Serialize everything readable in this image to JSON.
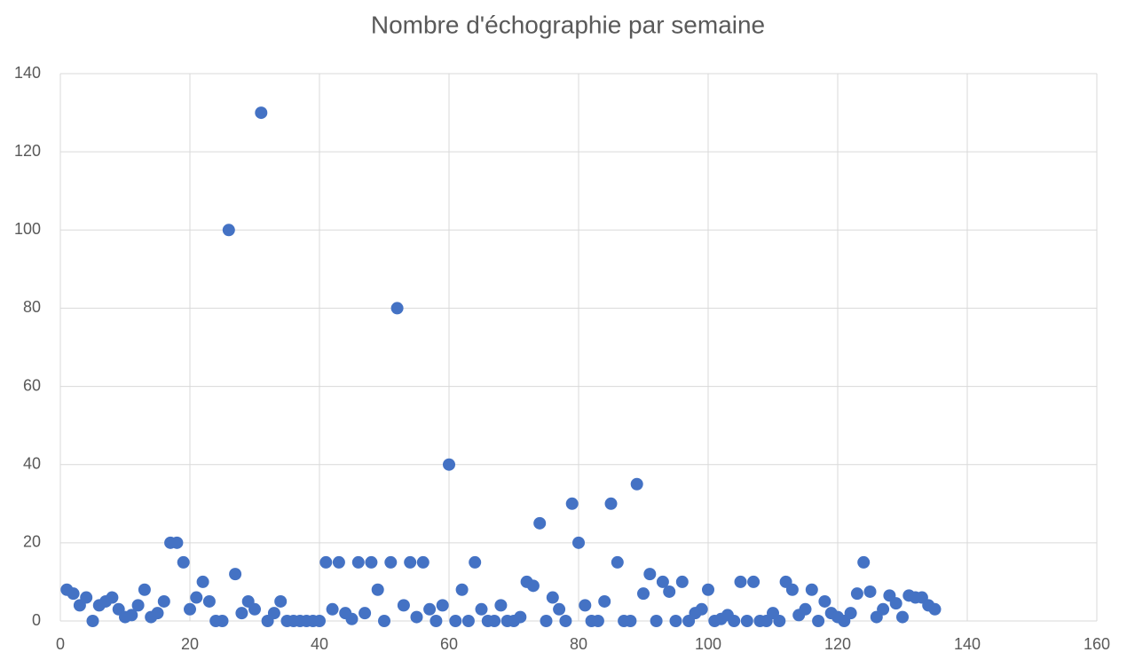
{
  "chart_data": {
    "type": "scatter",
    "title": "Nombre d'échographie par semaine",
    "x": [
      1,
      2,
      3,
      4,
      5,
      6,
      7,
      8,
      9,
      10,
      11,
      12,
      13,
      14,
      15,
      16,
      17,
      18,
      19,
      20,
      21,
      22,
      23,
      24,
      25,
      26,
      27,
      28,
      29,
      30,
      31,
      32,
      33,
      34,
      35,
      36,
      37,
      38,
      39,
      40,
      41,
      42,
      43,
      44,
      45,
      46,
      47,
      48,
      49,
      50,
      51,
      52,
      53,
      54,
      55,
      56,
      57,
      58,
      59,
      60,
      61,
      62,
      63,
      64,
      65,
      66,
      67,
      68,
      69,
      70,
      71,
      72,
      73,
      74,
      75,
      76,
      77,
      78,
      79,
      80,
      81,
      82,
      83,
      84,
      85,
      86,
      87,
      88,
      89,
      90,
      91,
      92,
      93,
      94,
      95,
      96,
      97,
      98,
      99,
      100,
      101,
      102,
      103,
      104,
      105,
      106,
      107,
      108,
      109,
      110,
      111,
      112,
      113,
      114,
      115,
      116,
      117,
      118,
      119,
      120,
      121,
      122,
      123,
      124,
      125,
      126,
      127,
      128,
      129,
      130,
      131,
      132,
      133,
      134,
      135
    ],
    "values": [
      8,
      7,
      4,
      6,
      0,
      4,
      5,
      6,
      3,
      1,
      1.5,
      4,
      8,
      1,
      2,
      5,
      20,
      20,
      15,
      3,
      6,
      10,
      5,
      0,
      0,
      100,
      12,
      2,
      5,
      3,
      130,
      0,
      2,
      5,
      0,
      0,
      0,
      0,
      0,
      0,
      15,
      3,
      15,
      2,
      0.5,
      15,
      2,
      15,
      8,
      0,
      15,
      80,
      4,
      15,
      1,
      15,
      3,
      0,
      4,
      40,
      0,
      8,
      0,
      15,
      3,
      0,
      0,
      4,
      0,
      0,
      1,
      10,
      9,
      25,
      0,
      6,
      3,
      0,
      30,
      20,
      4,
      0,
      0,
      5,
      30,
      15,
      0,
      0,
      35,
      7,
      12,
      0,
      10,
      7.5,
      0,
      10,
      0,
      2,
      3,
      8,
      0,
      0.5,
      1.5,
      0,
      10,
      0,
      10,
      0,
      0,
      2,
      0,
      10,
      8,
      1.5,
      3,
      8,
      0,
      5,
      2,
      1,
      0,
      2,
      7,
      15,
      7.5,
      1,
      3,
      6.5,
      4.5,
      1,
      6.5,
      6,
      6,
      4,
      3
    ],
    "color": "#4472c4",
    "xlim": [
      0,
      160
    ],
    "xticks": [
      0,
      20,
      40,
      60,
      80,
      100,
      120,
      140,
      160
    ],
    "ylim": [
      0,
      140
    ],
    "yticks": [
      0,
      20,
      40,
      60,
      80,
      100,
      120,
      140
    ],
    "grid": true
  }
}
